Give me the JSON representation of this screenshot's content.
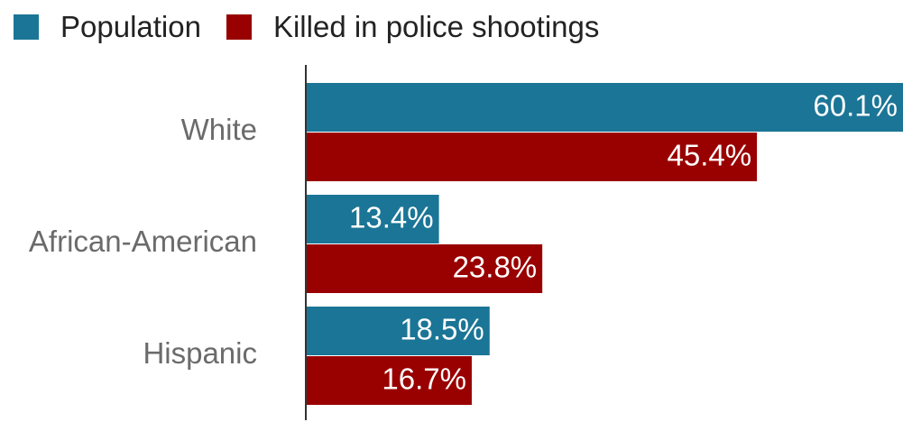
{
  "chart_data": {
    "type": "bar",
    "orientation": "horizontal",
    "categories": [
      "White",
      "African-American",
      "Hispanic"
    ],
    "series": [
      {
        "name": "Population",
        "values": [
          60.1,
          13.4,
          18.5
        ],
        "color": "#1b7596"
      },
      {
        "name": "Killed in police shootings",
        "values": [
          45.4,
          23.8,
          16.7
        ],
        "color": "#990000"
      }
    ],
    "value_suffix": "%",
    "xlim": [
      0,
      60.1
    ],
    "legend_position": "top-left",
    "grid": false
  }
}
